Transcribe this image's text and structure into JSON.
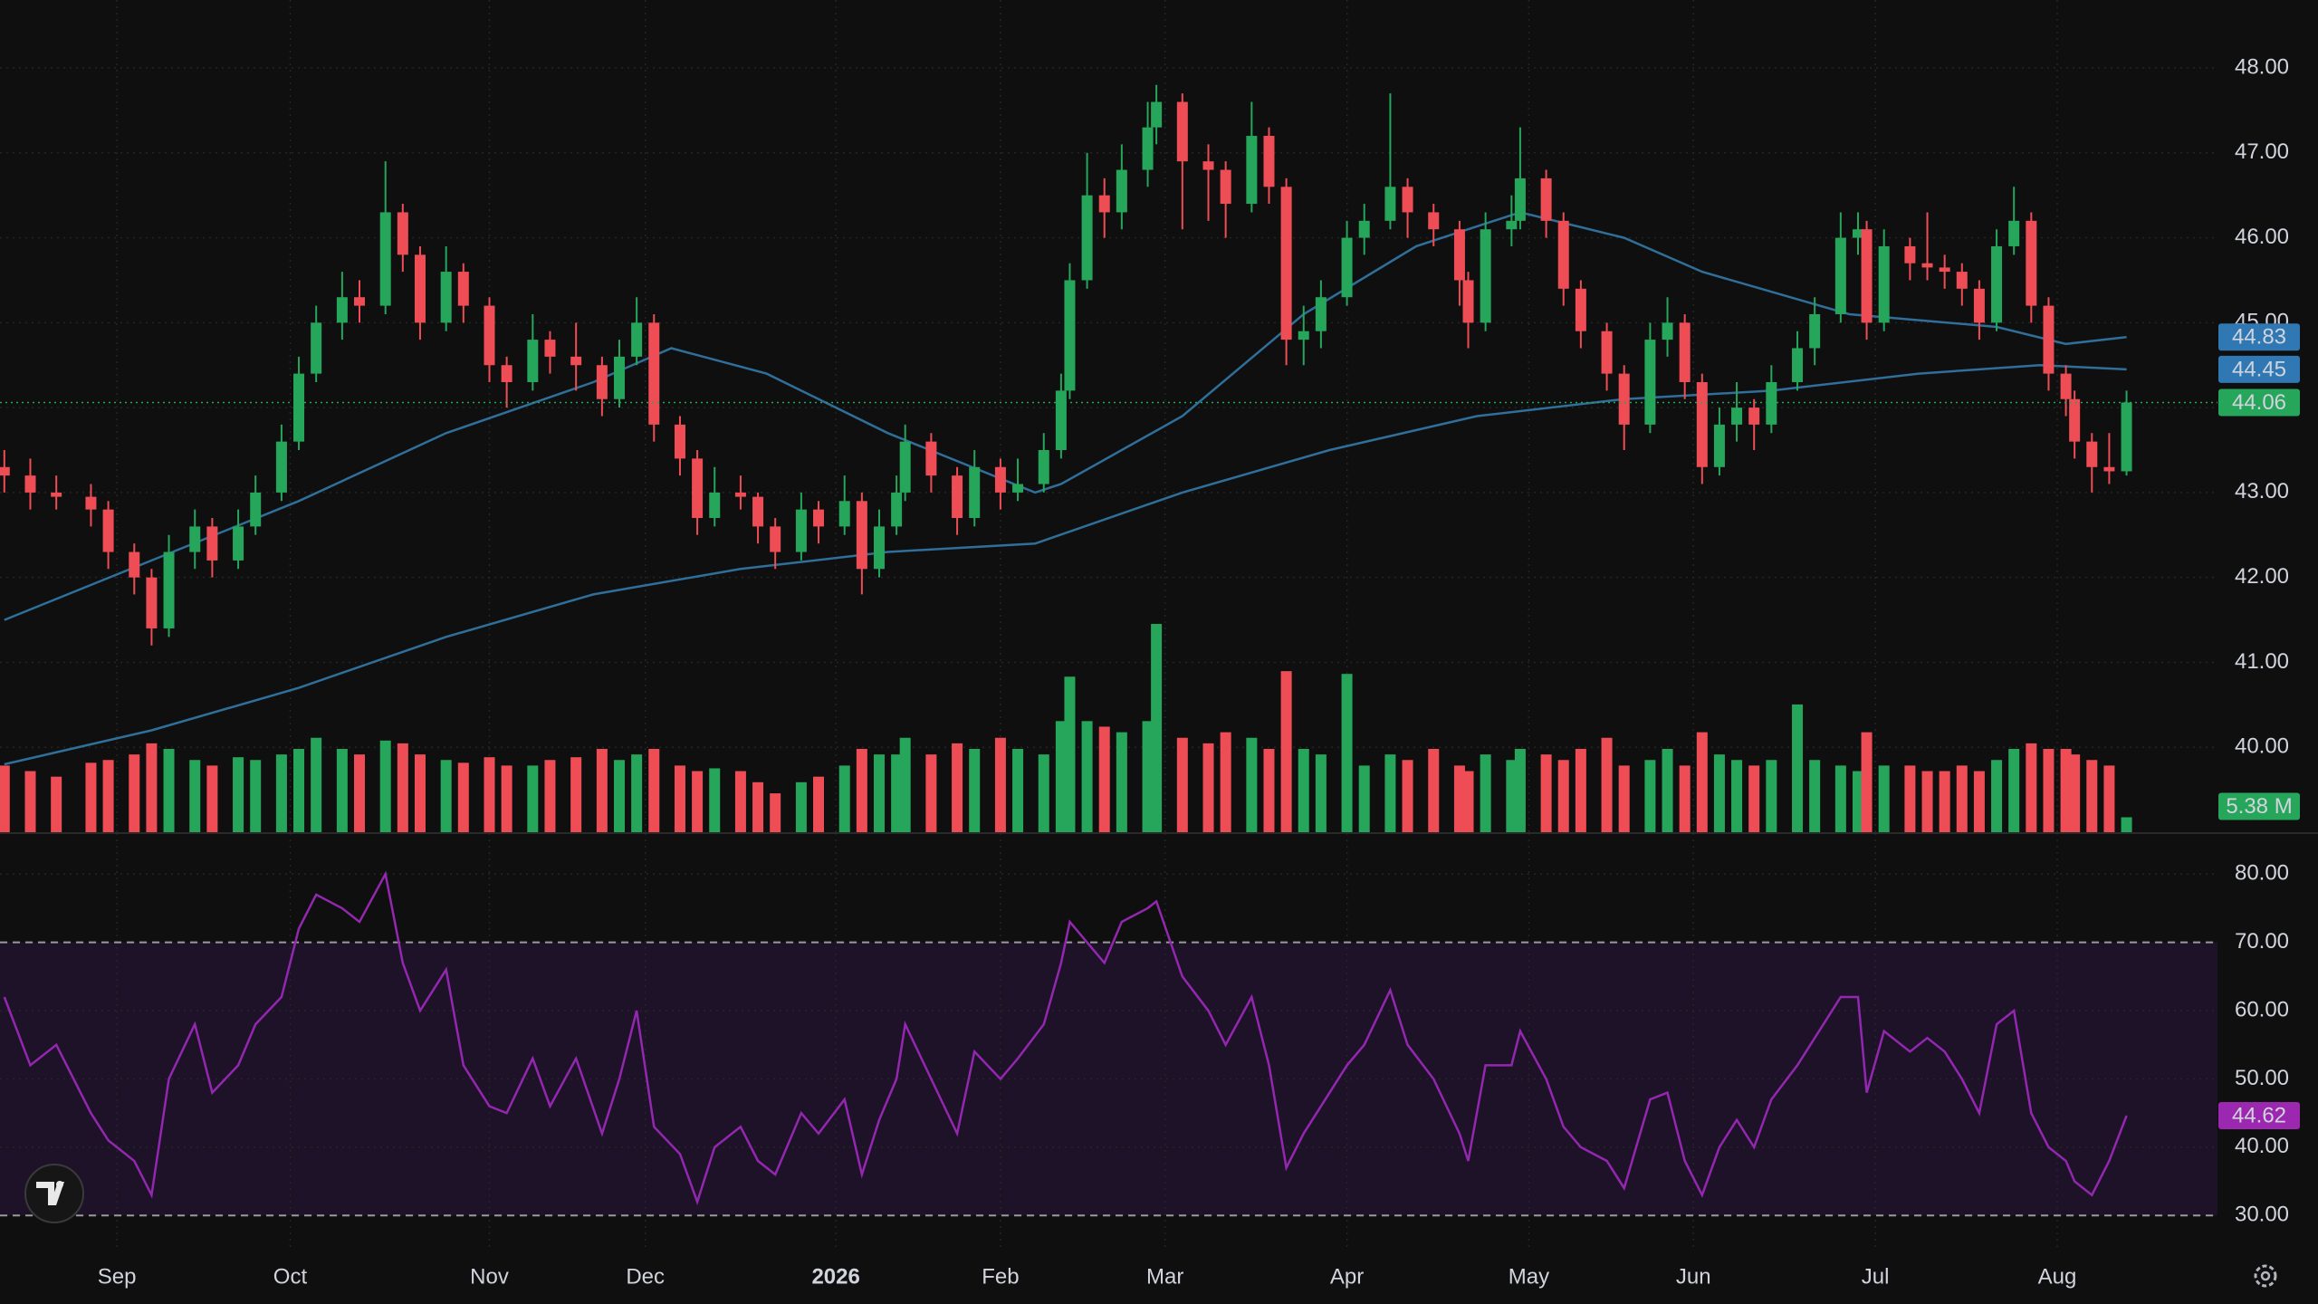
{
  "chart_data": {
    "type": "candlestick",
    "up_color": "#26a65b",
    "down_color": "#ef4d55",
    "x": [
      0,
      3,
      6,
      10,
      12,
      15,
      17,
      19,
      22,
      24,
      27,
      29,
      32,
      34,
      36,
      39,
      41,
      44,
      46,
      48,
      51,
      53,
      56,
      58,
      61,
      63,
      66,
      69,
      71,
      73,
      75,
      78,
      80,
      82,
      85,
      87,
      89,
      92,
      94,
      97,
      99,
      101,
      103,
      104,
      107,
      110,
      112,
      115,
      117,
      120,
      122,
      123,
      125,
      127,
      129,
      132,
      133,
      136,
      139,
      141,
      144,
      146,
      148,
      150,
      152,
      155,
      157,
      160,
      162,
      165,
      168,
      169,
      171,
      174,
      175,
      178,
      180,
      182,
      185,
      187,
      190,
      192,
      194,
      196,
      198,
      200,
      202,
      204,
      207,
      209,
      212,
      214,
      215,
      217,
      220,
      222,
      224,
      226,
      228,
      230,
      232,
      234,
      236,
      238,
      239,
      241,
      243,
      245
    ],
    "ohlc": [
      [
        43.3,
        43.5,
        43.0,
        43.2
      ],
      [
        43.2,
        43.4,
        42.8,
        43.0
      ],
      [
        43.0,
        43.2,
        42.8,
        42.95
      ],
      [
        42.95,
        43.1,
        42.6,
        42.8
      ],
      [
        42.8,
        42.9,
        42.1,
        42.3
      ],
      [
        42.3,
        42.4,
        41.8,
        42.0
      ],
      [
        42.0,
        42.1,
        41.2,
        41.4
      ],
      [
        41.4,
        42.5,
        41.3,
        42.3
      ],
      [
        42.3,
        42.8,
        42.1,
        42.6
      ],
      [
        42.6,
        42.7,
        42.0,
        42.2
      ],
      [
        42.2,
        42.8,
        42.1,
        42.6
      ],
      [
        42.6,
        43.2,
        42.5,
        43.0
      ],
      [
        43.0,
        43.8,
        42.9,
        43.6
      ],
      [
        43.6,
        44.6,
        43.5,
        44.4
      ],
      [
        44.4,
        45.2,
        44.3,
        45.0
      ],
      [
        45.0,
        45.6,
        44.8,
        45.3
      ],
      [
        45.3,
        45.5,
        45.0,
        45.2
      ],
      [
        45.2,
        46.9,
        45.1,
        46.3
      ],
      [
        46.3,
        46.4,
        45.6,
        45.8
      ],
      [
        45.8,
        45.9,
        44.8,
        45.0
      ],
      [
        45.0,
        45.9,
        44.9,
        45.6
      ],
      [
        45.6,
        45.7,
        45.0,
        45.2
      ],
      [
        45.2,
        45.3,
        44.3,
        44.5
      ],
      [
        44.5,
        44.6,
        44.0,
        44.3
      ],
      [
        44.3,
        45.1,
        44.2,
        44.8
      ],
      [
        44.8,
        44.9,
        44.4,
        44.6
      ],
      [
        44.6,
        45.0,
        44.2,
        44.5
      ],
      [
        44.5,
        44.6,
        43.9,
        44.1
      ],
      [
        44.1,
        44.8,
        44.0,
        44.6
      ],
      [
        44.6,
        45.3,
        44.5,
        45.0
      ],
      [
        45.0,
        45.1,
        43.6,
        43.8
      ],
      [
        43.8,
        43.9,
        43.2,
        43.4
      ],
      [
        43.4,
        43.5,
        42.5,
        42.7
      ],
      [
        42.7,
        43.3,
        42.6,
        43.0
      ],
      [
        43.0,
        43.2,
        42.8,
        42.95
      ],
      [
        42.95,
        43.0,
        42.4,
        42.6
      ],
      [
        42.6,
        42.7,
        42.1,
        42.3
      ],
      [
        42.3,
        43.0,
        42.2,
        42.8
      ],
      [
        42.8,
        42.9,
        42.4,
        42.6
      ],
      [
        42.6,
        43.2,
        42.5,
        42.9
      ],
      [
        42.9,
        43.0,
        41.8,
        42.1
      ],
      [
        42.1,
        42.8,
        42.0,
        42.6
      ],
      [
        42.6,
        43.2,
        42.5,
        43.0
      ],
      [
        43.0,
        43.8,
        42.9,
        43.6
      ],
      [
        43.6,
        43.7,
        43.0,
        43.2
      ],
      [
        43.2,
        43.3,
        42.5,
        42.7
      ],
      [
        42.7,
        43.5,
        42.6,
        43.3
      ],
      [
        43.3,
        43.4,
        42.8,
        43.0
      ],
      [
        43.0,
        43.4,
        42.9,
        43.1
      ],
      [
        43.1,
        43.7,
        43.0,
        43.5
      ],
      [
        43.5,
        44.4,
        43.4,
        44.2
      ],
      [
        44.2,
        45.7,
        44.1,
        45.5
      ],
      [
        45.5,
        47.0,
        45.4,
        46.5
      ],
      [
        46.5,
        46.7,
        46.0,
        46.3
      ],
      [
        46.3,
        47.1,
        46.1,
        46.8
      ],
      [
        46.8,
        47.6,
        46.6,
        47.3
      ],
      [
        47.3,
        47.8,
        47.1,
        47.6
      ],
      [
        47.6,
        47.7,
        46.1,
        46.9
      ],
      [
        46.9,
        47.1,
        46.2,
        46.8
      ],
      [
        46.8,
        46.9,
        46.0,
        46.4
      ],
      [
        46.4,
        47.6,
        46.3,
        47.2
      ],
      [
        47.2,
        47.3,
        46.4,
        46.6
      ],
      [
        46.6,
        46.7,
        44.5,
        44.8
      ],
      [
        44.8,
        45.2,
        44.5,
        44.9
      ],
      [
        44.9,
        45.5,
        44.7,
        45.3
      ],
      [
        45.3,
        46.2,
        45.2,
        46.0
      ],
      [
        46.0,
        46.4,
        45.8,
        46.2
      ],
      [
        46.2,
        47.7,
        46.1,
        46.6
      ],
      [
        46.6,
        46.7,
        46.0,
        46.3
      ],
      [
        46.3,
        46.4,
        45.9,
        46.1
      ],
      [
        46.1,
        46.2,
        45.2,
        45.5
      ],
      [
        45.5,
        45.6,
        44.7,
        45.0
      ],
      [
        45.0,
        46.3,
        44.9,
        46.1
      ],
      [
        46.1,
        46.5,
        45.9,
        46.2
      ],
      [
        46.2,
        47.3,
        46.1,
        46.7
      ],
      [
        46.7,
        46.8,
        46.0,
        46.2
      ],
      [
        46.2,
        46.3,
        45.2,
        45.4
      ],
      [
        45.4,
        45.5,
        44.7,
        44.9
      ],
      [
        44.9,
        45.0,
        44.2,
        44.4
      ],
      [
        44.4,
        44.5,
        43.5,
        43.8
      ],
      [
        43.8,
        45.0,
        43.7,
        44.8
      ],
      [
        44.8,
        45.3,
        44.6,
        45.0
      ],
      [
        45.0,
        45.1,
        44.1,
        44.3
      ],
      [
        44.3,
        44.4,
        43.1,
        43.3
      ],
      [
        43.3,
        44.0,
        43.2,
        43.8
      ],
      [
        43.8,
        44.3,
        43.6,
        44.0
      ],
      [
        44.0,
        44.1,
        43.5,
        43.8
      ],
      [
        43.8,
        44.5,
        43.7,
        44.3
      ],
      [
        44.3,
        44.9,
        44.2,
        44.7
      ],
      [
        44.7,
        45.3,
        44.5,
        45.1
      ],
      [
        45.1,
        46.3,
        45.0,
        46.0
      ],
      [
        46.0,
        46.3,
        45.8,
        46.1
      ],
      [
        46.1,
        46.2,
        44.8,
        45.0
      ],
      [
        45.0,
        46.1,
        44.9,
        45.9
      ],
      [
        45.9,
        46.0,
        45.5,
        45.7
      ],
      [
        45.7,
        46.3,
        45.5,
        45.65
      ],
      [
        45.65,
        45.8,
        45.4,
        45.6
      ],
      [
        45.6,
        45.7,
        45.2,
        45.4
      ],
      [
        45.4,
        45.5,
        44.8,
        45.0
      ],
      [
        45.0,
        46.1,
        44.9,
        45.9
      ],
      [
        45.9,
        46.6,
        45.8,
        46.2
      ],
      [
        46.2,
        46.3,
        45.0,
        45.2
      ],
      [
        45.2,
        45.3,
        44.2,
        44.4
      ],
      [
        44.4,
        44.5,
        43.9,
        44.1
      ],
      [
        44.1,
        44.2,
        43.4,
        43.6
      ],
      [
        43.6,
        43.7,
        43.0,
        43.3
      ],
      [
        43.3,
        43.7,
        43.1,
        43.25
      ],
      [
        43.25,
        44.2,
        43.2,
        44.06
      ]
    ],
    "volume": [
      24,
      22,
      20,
      25,
      26,
      28,
      32,
      30,
      26,
      24,
      27,
      26,
      28,
      30,
      34,
      30,
      28,
      33,
      32,
      28,
      26,
      25,
      27,
      24,
      24,
      26,
      27,
      30,
      26,
      28,
      30,
      24,
      22,
      23,
      22,
      18,
      14,
      18,
      20,
      24,
      30,
      28,
      28,
      34,
      28,
      32,
      30,
      34,
      30,
      28,
      40,
      56,
      40,
      38,
      36,
      40,
      75,
      34,
      32,
      36,
      34,
      30,
      58,
      30,
      28,
      57,
      24,
      28,
      26,
      30,
      24,
      22,
      28,
      26,
      30,
      28,
      26,
      30,
      34,
      24,
      26,
      30,
      24,
      36,
      28,
      26,
      24,
      26,
      46,
      26,
      24,
      22,
      36,
      24,
      24,
      22,
      22,
      24,
      22,
      26,
      30,
      32,
      30,
      30,
      28,
      26,
      24,
      5.38
    ],
    "volume_last_label": "5.38 M",
    "ma_series": [
      {
        "color": "#2f6f9a",
        "label_color": "#2f78b4",
        "x": [
          0,
          17,
          34,
          51,
          68,
          77,
          88,
          102,
          119,
          122,
          136,
          150,
          163,
          175,
          187,
          196,
          213,
          230,
          238,
          245
        ],
        "values": [
          41.5,
          42.2,
          42.9,
          43.7,
          44.3,
          44.7,
          44.4,
          43.7,
          43.0,
          43.1,
          43.9,
          45.1,
          45.9,
          46.3,
          46.0,
          45.6,
          45.1,
          44.95,
          44.75,
          44.83
        ]
      },
      {
        "color": "#2f6f9a",
        "label_color": "#2f78b4",
        "x": [
          0,
          17,
          34,
          51,
          68,
          85,
          102,
          119,
          136,
          153,
          170,
          187,
          204,
          221,
          235,
          245
        ],
        "values": [
          39.8,
          40.2,
          40.7,
          41.3,
          41.8,
          42.1,
          42.3,
          42.4,
          43.0,
          43.5,
          43.9,
          44.1,
          44.2,
          44.4,
          44.5,
          44.45
        ]
      }
    ],
    "last_price_line": true,
    "xlim": [
      -0.5,
      255.5
    ],
    "xticks": [
      {
        "value": 13,
        "label": "Sep"
      },
      {
        "value": 33,
        "label": "Oct"
      },
      {
        "value": 56,
        "label": "Nov"
      },
      {
        "value": 74,
        "label": "Dec"
      },
      {
        "value": 96,
        "label": "2026"
      },
      {
        "value": 115,
        "label": "Feb"
      },
      {
        "value": 134,
        "label": "Mar"
      },
      {
        "value": 155,
        "label": "Apr"
      },
      {
        "value": 176,
        "label": "May"
      },
      {
        "value": 195,
        "label": "Jun"
      },
      {
        "value": 216,
        "label": "Jul"
      },
      {
        "value": 237,
        "label": "Aug"
      }
    ],
    "ylim": [
      39,
      48.8
    ],
    "yticks": [
      {
        "value": 40,
        "label": "40.00"
      },
      {
        "value": 41,
        "label": "41.00"
      },
      {
        "value": 42,
        "label": "42.00"
      },
      {
        "value": 43,
        "label": "43.00"
      },
      {
        "value": 44,
        "label": "44.00"
      },
      {
        "value": 45,
        "label": "45.00"
      },
      {
        "value": 46,
        "label": "46.00"
      },
      {
        "value": 47,
        "label": "47.00"
      },
      {
        "value": 48,
        "label": "48.00"
      }
    ],
    "grid": true,
    "rsi": {
      "color": "#9327b0",
      "label_color": "#9c27b0",
      "band_color": "#1e1228",
      "values": [
        62,
        52,
        55,
        45,
        41,
        38,
        33,
        50,
        58,
        48,
        52,
        58,
        62,
        72,
        77,
        75,
        73,
        80,
        67,
        60,
        66,
        52,
        46,
        45,
        53,
        46,
        53,
        42,
        50,
        60,
        43,
        39,
        32,
        40,
        43,
        38,
        36,
        45,
        42,
        47,
        36,
        44,
        50,
        58,
        50,
        42,
        54,
        50,
        53,
        58,
        67,
        73,
        70,
        67,
        73,
        75,
        76,
        65,
        60,
        55,
        62,
        52,
        37,
        42,
        46,
        52,
        55,
        63,
        55,
        50,
        42,
        38,
        52,
        52,
        57,
        50,
        43,
        40,
        38,
        34,
        47,
        48,
        38,
        33,
        40,
        44,
        40,
        47,
        52,
        56,
        62,
        62,
        48,
        57,
        54,
        56,
        54,
        50,
        45,
        58,
        60,
        45,
        40,
        38,
        35,
        33,
        38,
        44.62
      ],
      "ylim": [
        25,
        86
      ],
      "yticks": [
        {
          "value": 30,
          "label": "30.00"
        },
        {
          "value": 40,
          "label": "40.00"
        },
        {
          "value": 50,
          "label": "50.00"
        },
        {
          "value": 60,
          "label": "60.00"
        },
        {
          "value": 70,
          "label": "70.00"
        },
        {
          "value": 80,
          "label": "80.00"
        }
      ],
      "bands": [
        30,
        70
      ]
    }
  }
}
